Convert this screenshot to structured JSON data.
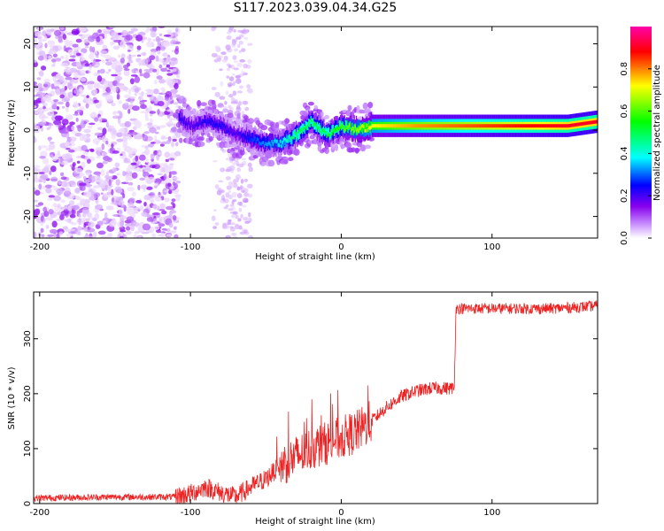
{
  "title": "S117.2023.039.04.34.G25",
  "chart_data": [
    {
      "type": "heatmap",
      "xlabel": "Height of straight line (km)",
      "ylabel": "Frequency (Hz)",
      "xlim": [
        -204,
        170
      ],
      "ylim": [
        -25,
        24
      ],
      "x_ticks": [
        -200,
        -100,
        0,
        100
      ],
      "y_ticks": [
        -20,
        -10,
        0,
        10,
        20
      ],
      "grid": false,
      "colorbar": {
        "label": "Normalized spectral amplitude",
        "range": [
          0,
          1
        ],
        "ticks": [
          0.0,
          0.2,
          0.4,
          0.6,
          0.8
        ],
        "tick_labels": [
          "0.0",
          "0.2",
          "0.4",
          "0.6",
          "0.8"
        ],
        "colormap": [
          "#ffffff",
          "#cc99ff",
          "#8800ee",
          "#0000ff",
          "#00ffff",
          "#00ff00",
          "#ffff00",
          "#ff0000",
          "#ff00aa"
        ]
      },
      "ridge": {
        "x": [
          -108,
          -100,
          -90,
          -80,
          -70,
          -60,
          -50,
          -40,
          -30,
          -20,
          -10,
          0,
          10,
          20,
          50,
          100,
          150,
          170
        ],
        "frequency": [
          3,
          1,
          2,
          1,
          -1,
          -2,
          -3,
          -3,
          -1,
          2,
          -1,
          1,
          0,
          1,
          1,
          1,
          1,
          2
        ],
        "amplitude": [
          0.35,
          0.3,
          0.35,
          0.35,
          0.3,
          0.4,
          0.45,
          0.5,
          0.6,
          0.6,
          0.6,
          0.65,
          0.7,
          0.75,
          0.8,
          0.85,
          0.9,
          0.9
        ]
      },
      "noise_region": {
        "x_range": [
          -204,
          -108
        ],
        "level": "high"
      }
    },
    {
      "type": "line",
      "xlabel": "Height of straight line (km)",
      "ylabel": "SNR (10 * v/v)",
      "xlim": [
        -204,
        170
      ],
      "ylim": [
        0,
        385
      ],
      "x_ticks": [
        -200,
        -100,
        0,
        100
      ],
      "y_ticks": [
        0,
        100,
        200,
        300
      ],
      "grid": false,
      "series": [
        {
          "color": "#ee2222",
          "x": [
            -204,
            -150,
            -110,
            -100,
            -90,
            -80,
            -70,
            -60,
            -50,
            -40,
            -30,
            -20,
            -10,
            0,
            10,
            20,
            30,
            40,
            50,
            60,
            70,
            75,
            76,
            80,
            100,
            120,
            140,
            160,
            170
          ],
          "y": [
            10,
            12,
            12,
            18,
            30,
            20,
            12,
            30,
            45,
            70,
            85,
            100,
            110,
            120,
            130,
            150,
            175,
            195,
            205,
            210,
            210,
            210,
            355,
            355,
            355,
            355,
            355,
            358,
            360
          ]
        }
      ]
    }
  ]
}
